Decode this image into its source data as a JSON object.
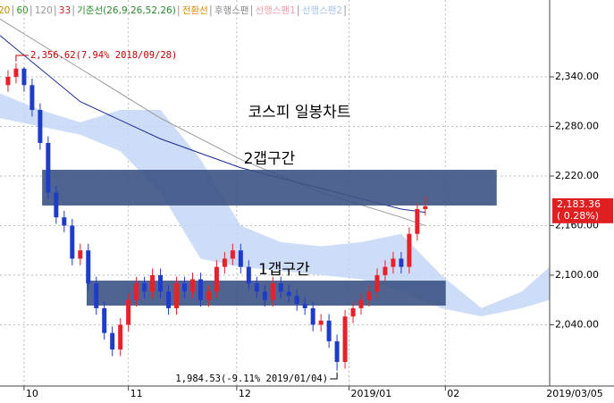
{
  "chart_data": {
    "type": "candlestick",
    "title": "코스피 일봉차트",
    "legend": [
      {
        "name": "20",
        "color": "#d08a00"
      },
      {
        "name": "60",
        "color": "#2a9a2a"
      },
      {
        "name": "120",
        "color": "#999999"
      },
      {
        "name": "33",
        "color": "#cc2222"
      },
      {
        "name": "기준선(26,9,26,52,26)",
        "color": "#2a8a2a"
      },
      {
        "name": "전환선",
        "color": "#e08a00"
      },
      {
        "name": "후행스팬",
        "color": "#888888"
      },
      {
        "name": "선행스팬1",
        "color": "#f4a0a8"
      },
      {
        "name": "선행스팬2",
        "color": "#a8c4f0"
      }
    ],
    "xlim": [
      0,
      137
    ],
    "xticks": [
      {
        "value": 6,
        "label": "10"
      },
      {
        "value": 32,
        "label": "11"
      },
      {
        "value": 59,
        "label": "12"
      },
      {
        "value": 87,
        "label": "2019/01"
      },
      {
        "value": 111,
        "label": "02"
      }
    ],
    "x_end_label": "2019/03/05",
    "ylim": [
      1968,
      2433
    ],
    "yticks": [
      {
        "value": 2040,
        "label": "2,040.00"
      },
      {
        "value": 2100,
        "label": "2,100.00"
      },
      {
        "value": 2160,
        "label": "2,160.00"
      },
      {
        "value": 2220,
        "label": "2,220.00"
      },
      {
        "value": 2280,
        "label": "2,280.00"
      },
      {
        "value": 2340,
        "label": "2,340.00"
      }
    ],
    "grid": true,
    "up_color": "#e8202a",
    "down_color": "#1e3cc8",
    "x": [
      2,
      4,
      6,
      8,
      10,
      12,
      14,
      16,
      18,
      20,
      22,
      24,
      26,
      28,
      30,
      32,
      34,
      36,
      38,
      40,
      42,
      44,
      46,
      48,
      50,
      52,
      54,
      56,
      58,
      60,
      62,
      64,
      66,
      68,
      70,
      72,
      74,
      76,
      78,
      80,
      82,
      84,
      86,
      88,
      90,
      92,
      94,
      96,
      98,
      100,
      102,
      104,
      106
    ],
    "open": [
      2330,
      2340,
      2350,
      2330,
      2300,
      2260,
      2200,
      2170,
      2160,
      2120,
      2130,
      2090,
      2060,
      2030,
      2010,
      2040,
      2070,
      2090,
      2080,
      2100,
      2080,
      2060,
      2090,
      2080,
      2095,
      2070,
      2080,
      2110,
      2120,
      2130,
      2110,
      2090,
      2080,
      2070,
      2090,
      2080,
      2075,
      2065,
      2060,
      2040,
      2045,
      2020,
      1995,
      2050,
      2060,
      2070,
      2080,
      2100,
      2110,
      2120,
      2110,
      2150,
      2180
    ],
    "high": [
      2348,
      2356.62,
      2352,
      2338,
      2308,
      2268,
      2208,
      2178,
      2168,
      2138,
      2138,
      2098,
      2068,
      2038,
      2048,
      2078,
      2098,
      2098,
      2108,
      2108,
      2088,
      2098,
      2098,
      2103,
      2103,
      2088,
      2118,
      2128,
      2138,
      2138,
      2118,
      2098,
      2088,
      2098,
      2098,
      2088,
      2083,
      2073,
      2068,
      2053,
      2053,
      2028,
      2058,
      2068,
      2078,
      2088,
      2108,
      2118,
      2128,
      2128,
      2158,
      2188,
      2195
    ],
    "low": [
      2322,
      2332,
      2322,
      2292,
      2252,
      2192,
      2162,
      2152,
      2112,
      2112,
      2082,
      2052,
      2022,
      2002,
      2002,
      2032,
      2062,
      2072,
      2072,
      2072,
      2052,
      2052,
      2072,
      2072,
      2062,
      2062,
      2072,
      2102,
      2112,
      2102,
      2082,
      2072,
      2062,
      2062,
      2072,
      2067,
      2057,
      2052,
      2032,
      2032,
      2012,
      1984.53,
      1987,
      2042,
      2052,
      2062,
      2072,
      2092,
      2102,
      2102,
      2102,
      2142,
      2172
    ],
    "close": [
      2340,
      2350,
      2330,
      2300,
      2260,
      2200,
      2170,
      2160,
      2120,
      2130,
      2090,
      2060,
      2030,
      2010,
      2040,
      2070,
      2090,
      2080,
      2100,
      2080,
      2060,
      2090,
      2080,
      2095,
      2070,
      2080,
      2110,
      2120,
      2130,
      2110,
      2090,
      2080,
      2070,
      2090,
      2080,
      2075,
      2065,
      2060,
      2040,
      2045,
      2020,
      1995,
      2050,
      2060,
      2070,
      2080,
      2100,
      2110,
      2120,
      2110,
      2150,
      2180,
      2183.36
    ],
    "cloud": {
      "x": [
        0,
        10,
        20,
        30,
        40,
        50,
        60,
        70,
        80,
        90,
        100,
        110,
        120,
        130,
        137
      ],
      "span1": [
        2320,
        2300,
        2285,
        2300,
        2300,
        2240,
        2160,
        2140,
        2135,
        2140,
        2150,
        2100,
        2060,
        2080,
        2110
      ],
      "span2": [
        2290,
        2280,
        2270,
        2250,
        2200,
        2120,
        2110,
        2105,
        2100,
        2095,
        2080,
        2060,
        2050,
        2060,
        2070
      ],
      "fill": "#c4d6f6"
    },
    "lines": [
      {
        "name": "120",
        "color": "#999999",
        "x": [
          0,
          20,
          40,
          60,
          80,
          100,
          106
        ],
        "values": [
          2410,
          2350,
          2290,
          2240,
          2200,
          2170,
          2160
        ]
      },
      {
        "name": "60",
        "color": "#1a2a9a",
        "x": [
          0,
          20,
          40,
          60,
          80,
          100,
          106
        ],
        "values": [
          2390,
          2310,
          2265,
          2230,
          2205,
          2180,
          2176
        ]
      }
    ],
    "gap_zones": [
      {
        "label": "2갭구간",
        "x": [
          10.5,
          123.8
        ],
        "y": [
          2184.3,
          2227.5
        ]
      },
      {
        "label": "1갭구간",
        "x": [
          21.6,
          111.1
        ],
        "y": [
          2063.2,
          2093.4
        ]
      }
    ],
    "gap_color": "#3c5384",
    "high_annotation": "2,356.62(7.94% 2018/09/28)",
    "low_annotation": "1,984.53(-9.11% 2019/01/04)",
    "last_price": {
      "value": 2183.36,
      "label": "2,183.36"
    },
    "last_change": "( 0.28%)"
  }
}
